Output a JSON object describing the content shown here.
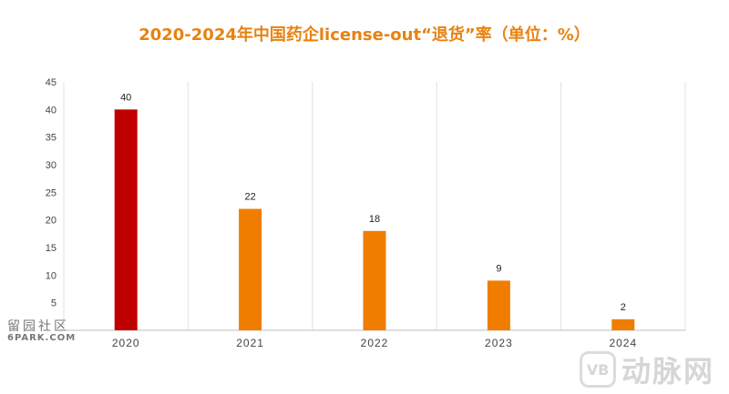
{
  "chart_data": {
    "type": "bar",
    "title": "2020-2024年中国药企license-out“退货”率（单位：%）",
    "categories": [
      "2020",
      "2021",
      "2022",
      "2023",
      "2024"
    ],
    "values": [
      40,
      22,
      18,
      9,
      2
    ],
    "bar_colors": [
      "#c00000",
      "#f07d00",
      "#f07d00",
      "#f07d00",
      "#f07d00"
    ],
    "ylim": [
      0,
      45
    ],
    "yticks": [
      5,
      10,
      15,
      20,
      25,
      30,
      35,
      40,
      45
    ],
    "grid": "vertical category separators",
    "legend": "none"
  },
  "watermarks": {
    "left_cn": "留园社区",
    "left_en": "6PARK.COM",
    "right_logo": "VB",
    "right_text": "动脉网"
  },
  "colors": {
    "title": "#e8820f"
  }
}
